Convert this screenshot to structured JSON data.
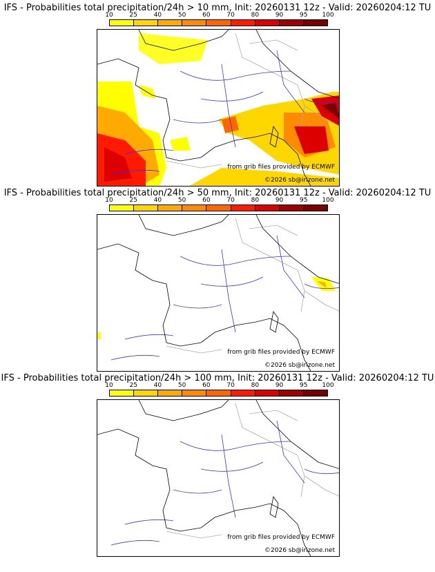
{
  "panels": [
    {
      "title": "IFS - Probabilities total precipitation/24h > 10 mm, Init: 20260131 12z - Valid: 20260204:12 TU",
      "has_precip": "heavy"
    },
    {
      "title": "IFS - Probabilities total precipitation/24h > 50 mm, Init: 20260131 12z - Valid: 20260204:12 TU",
      "has_precip": "light"
    },
    {
      "title": "IFS - Probabilities total precipitation/24h > 100 mm, Init: 20260131 12z - Valid: 20260204:12 TU",
      "has_precip": "none"
    }
  ],
  "colorbar": {
    "ticks": [
      "10",
      "25",
      "40",
      "50",
      "60",
      "70",
      "80",
      "90",
      "95",
      "100"
    ],
    "colors": [
      "#ffff00",
      "#ffd700",
      "#ffaa00",
      "#ff8c00",
      "#ff6600",
      "#ff1a00",
      "#dd0000",
      "#a00000",
      "#7a0000"
    ]
  },
  "credits": {
    "source": "from grib files provided by ECMWF",
    "copyright": "©2026 sb@irizone.net"
  }
}
